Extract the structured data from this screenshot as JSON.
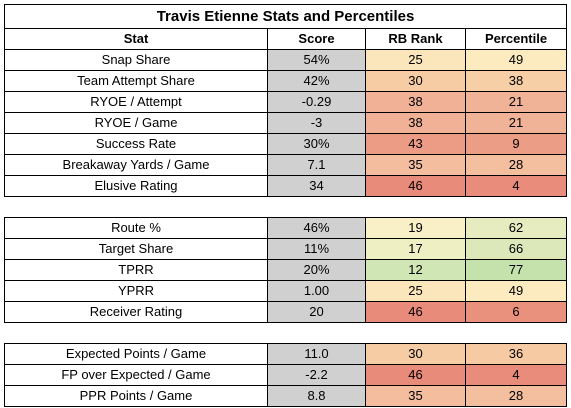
{
  "title": "Travis Etienne Stats and Percentiles",
  "headers": [
    "Stat",
    "Score",
    "RB Rank",
    "Percentile"
  ],
  "sections": [
    [
      {
        "stat": "Snap Share",
        "score": "54%",
        "rank": "25",
        "pct": "49",
        "rank_color": "#fbe6bc",
        "pct_color": "#fbebbe"
      },
      {
        "stat": "Team Attempt Share",
        "score": "42%",
        "rank": "30",
        "pct": "38",
        "rank_color": "#f6cca4",
        "pct_color": "#f6cfa6"
      },
      {
        "stat": "RYOE / Attempt",
        "score": "-0.29",
        "rank": "38",
        "pct": "21",
        "rank_color": "#f1b196",
        "pct_color": "#f1b397"
      },
      {
        "stat": "RYOE / Game",
        "score": "-3",
        "rank": "38",
        "pct": "21",
        "rank_color": "#f1b196",
        "pct_color": "#f1b397"
      },
      {
        "stat": "Success Rate",
        "score": "30%",
        "rank": "43",
        "pct": "9",
        "rank_color": "#ec9b85",
        "pct_color": "#ec9d86"
      },
      {
        "stat": "Breakaway Yards / Game",
        "score": "7.1",
        "rank": "35",
        "pct": "28",
        "rank_color": "#f4bd9e",
        "pct_color": "#f3bf9e"
      },
      {
        "stat": "Elusive Rating",
        "score": "34",
        "rank": "46",
        "pct": "4",
        "rank_color": "#e98b7b",
        "pct_color": "#e98c7c"
      }
    ],
    [
      {
        "stat": "Route %",
        "score": "46%",
        "rank": "19",
        "pct": "62",
        "rank_color": "#f9f0c8",
        "pct_color": "#e7ecc0"
      },
      {
        "stat": "Target Share",
        "score": "11%",
        "rank": "17",
        "pct": "66",
        "rank_color": "#eef0c4",
        "pct_color": "#dde8ba"
      },
      {
        "stat": "TPRR",
        "score": "20%",
        "rank": "12",
        "pct": "77",
        "rank_color": "#d0e6b4",
        "pct_color": "#c5e2ad"
      },
      {
        "stat": "YPRR",
        "score": "1.00",
        "rank": "25",
        "pct": "49",
        "rank_color": "#fbe6bc",
        "pct_color": "#fbebbe"
      },
      {
        "stat": "Receiver Rating",
        "score": "20",
        "rank": "46",
        "pct": "6",
        "rank_color": "#e98b7b",
        "pct_color": "#ea917e"
      }
    ],
    [
      {
        "stat": "Expected Points / Game",
        "score": "11.0",
        "rank": "30",
        "pct": "36",
        "rank_color": "#f6cca4",
        "pct_color": "#f6cba3"
      },
      {
        "stat": "FP over Expected / Game",
        "score": "-2.2",
        "rank": "46",
        "pct": "4",
        "rank_color": "#e98b7b",
        "pct_color": "#e98c7c"
      },
      {
        "stat": "PPR Points / Game",
        "score": "8.8",
        "rank": "35",
        "pct": "28",
        "rank_color": "#f4bd9e",
        "pct_color": "#f3bf9e"
      }
    ]
  ]
}
